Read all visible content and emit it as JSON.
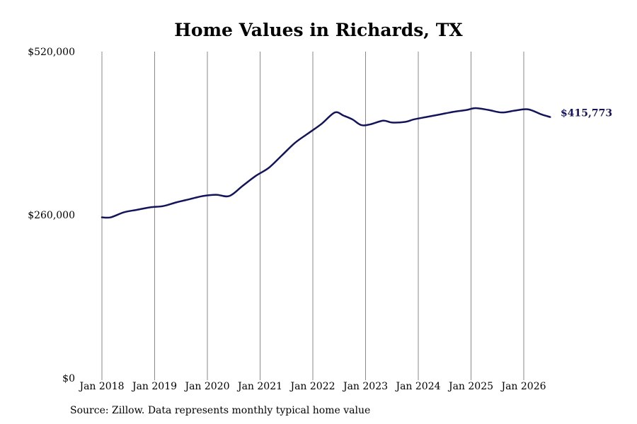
{
  "chart_data": {
    "type": "line",
    "title": "Home Values in Richards, TX",
    "xlabel": "",
    "ylabel": "",
    "ylim": [
      0,
      520000
    ],
    "y_ticks": [
      0,
      260000,
      520000
    ],
    "y_tick_labels": [
      "$0",
      "$260,000",
      "$520,000"
    ],
    "x_range": [
      "2018-01",
      "2026-07"
    ],
    "x_ticks": [
      "2018-01",
      "2019-01",
      "2020-01",
      "2021-01",
      "2022-01",
      "2023-01",
      "2024-01",
      "2025-01",
      "2026-01"
    ],
    "x_tick_labels": [
      "Jan 2018",
      "Jan 2019",
      "Jan 2020",
      "Jan 2021",
      "Jan 2022",
      "Jan 2023",
      "Jan 2024",
      "Jan 2025",
      "Jan 2026"
    ],
    "grid": "vertical",
    "line_color": "#14145a",
    "end_label": "$415,773",
    "series": [
      {
        "x": [
          "2018-01",
          "2018-03",
          "2018-06",
          "2018-09",
          "2018-12",
          "2019-03",
          "2019-06",
          "2019-09",
          "2019-12",
          "2020-03",
          "2020-06",
          "2020-09",
          "2020-12",
          "2021-03",
          "2021-06",
          "2021-09",
          "2021-12",
          "2022-03",
          "2022-06",
          "2022-08",
          "2022-10",
          "2022-12",
          "2023-02",
          "2023-05",
          "2023-07",
          "2023-10",
          "2023-12",
          "2024-03",
          "2024-06",
          "2024-09",
          "2024-12",
          "2025-02",
          "2025-05",
          "2025-08",
          "2025-11",
          "2026-02",
          "2026-05",
          "2026-07"
        ],
        "values": [
          256000,
          256000,
          264000,
          268000,
          272000,
          274000,
          280000,
          285000,
          290000,
          292000,
          290000,
          306000,
          322000,
          335000,
          355000,
          375000,
          390000,
          405000,
          423000,
          418000,
          412000,
          403000,
          404000,
          410000,
          407000,
          408000,
          412000,
          416000,
          420000,
          424000,
          427000,
          430000,
          427000,
          423000,
          426000,
          428000,
          420000,
          415773
        ]
      }
    ]
  },
  "source": "Source: Zillow. Data represents monthly typical home value"
}
